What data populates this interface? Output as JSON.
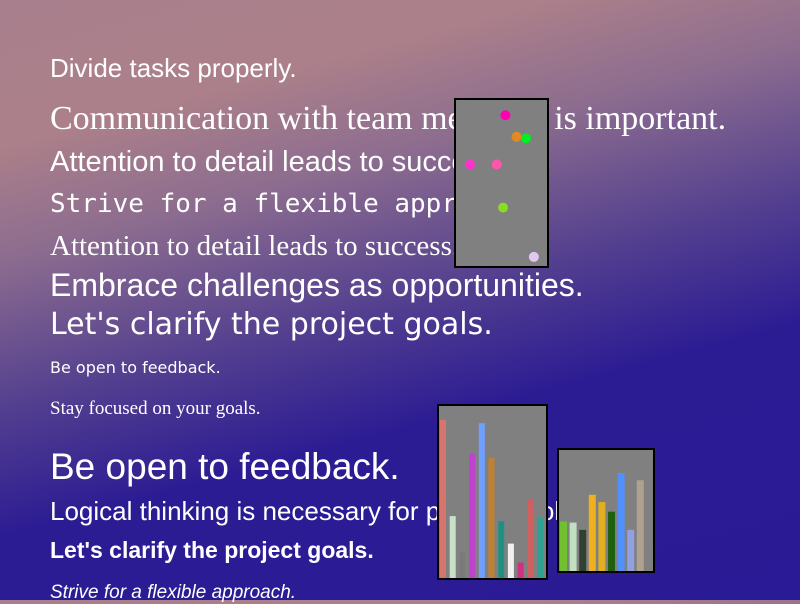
{
  "lines": [
    "Divide tasks properly.",
    "Communication with team members is important.",
    "Attention to detail leads to success.",
    "Strive for a flexible approach.",
    "Attention to detail leads to success.",
    "Embrace challenges as opportunities.",
    "Let's clarify the project goals.",
    "Be open to feedback.",
    "Stay focused on your goals.",
    "Be open to feedback.",
    "Logical thinking is necessary for problem solving.",
    "Let's clarify the project goals.",
    "Strive for a flexible approach."
  ],
  "scatter_panel": {
    "points": [
      {
        "x": 0.55,
        "y": 0.94,
        "color": "#ff00b4"
      },
      {
        "x": 0.69,
        "y": 0.8,
        "color": "#e08a20"
      },
      {
        "x": 0.81,
        "y": 0.79,
        "color": "#00ee22"
      },
      {
        "x": 0.1,
        "y": 0.62,
        "color": "#ff33cc"
      },
      {
        "x": 0.44,
        "y": 0.62,
        "color": "#ff55aa"
      },
      {
        "x": 0.52,
        "y": 0.34,
        "color": "#88dd22"
      },
      {
        "x": 0.91,
        "y": 0.02,
        "color": "#e0c8ee"
      }
    ]
  },
  "bar_panel_1": {
    "values": [
      0.92,
      0.36,
      0.15,
      0.72,
      0.9,
      0.7,
      0.33,
      0.2,
      0.09,
      0.46,
      0.35
    ],
    "colors": [
      "#d8736d",
      "#c8e0c8",
      "#7a7a7a",
      "#c040d0",
      "#70a0ff",
      "#c08030",
      "#209080",
      "#f0f0f0",
      "#d03080",
      "#d06060",
      "#30a090"
    ]
  },
  "bar_panel_2": {
    "values": [
      0.41,
      0.4,
      0.34,
      0.63,
      0.57,
      0.49,
      0.81,
      0.34,
      0.75
    ],
    "colors": [
      "#70c030",
      "#c0e0c0",
      "#304030",
      "#f0b020",
      "#e0b020",
      "#206010",
      "#5090ff",
      "#90a0e0",
      "#b0a090"
    ]
  }
}
